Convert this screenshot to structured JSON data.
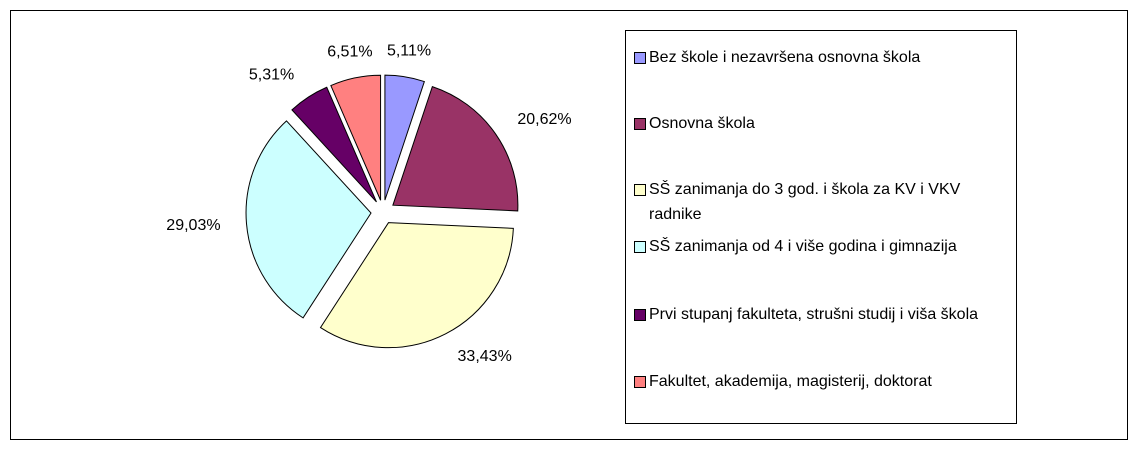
{
  "chart_data": {
    "type": "pie",
    "categories": [
      "Bez škole i nezavršena osnovna škola",
      "Osnovna škola",
      "SŠ zanimanja do 3 god. i škola za KV i VKV radnike",
      "SŠ zanimanja od 4 i više godina i gimnazija",
      "Prvi stupanj fakulteta, strušni studij i viša škola",
      "Fakultet, akademija, magisterij, doktorat"
    ],
    "values": [
      5.11,
      20.62,
      33.43,
      29.03,
      5.31,
      6.51
    ],
    "value_labels": [
      "5,11%",
      "20,62%",
      "33,43%",
      "29,03%",
      "5,31%",
      "6,51%"
    ],
    "colors": [
      "#9999ff",
      "#993366",
      "#ffffcc",
      "#ccffff",
      "#660066",
      "#ff8080"
    ],
    "legend": "right"
  }
}
